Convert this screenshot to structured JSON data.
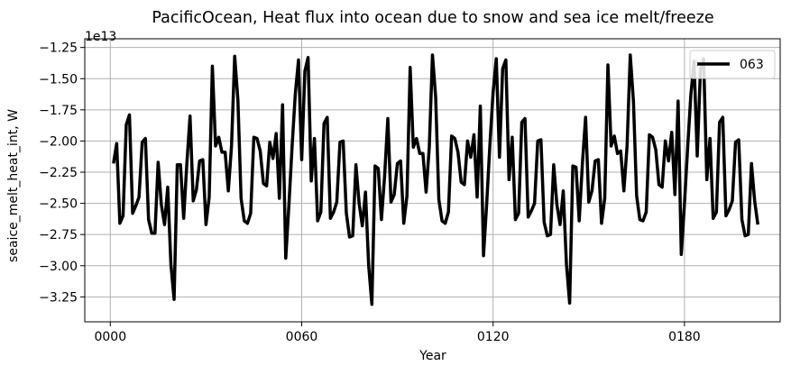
{
  "chart_data": {
    "type": "line",
    "title": "PacificOcean, Heat flux into ocean due to snow and sea ice melt/freeze",
    "xlabel": "Year",
    "ylabel": "seaice_melt_heat_int, W",
    "offset_text": "1e13",
    "xlim": [
      -8,
      210
    ],
    "ylim": [
      -3.45,
      -1.18
    ],
    "x_ticks": [
      0,
      60,
      120,
      180
    ],
    "x_tick_labels": [
      "0000",
      "0060",
      "0120",
      "0180"
    ],
    "y_ticks": [
      -3.25,
      -3.0,
      -2.75,
      -2.5,
      -2.25,
      -2.0,
      -1.75,
      -1.5,
      -1.25
    ],
    "y_tick_labels": [
      "−3.25",
      "−3.00",
      "−2.75",
      "−2.50",
      "−2.25",
      "−2.00",
      "−1.75",
      "−1.50",
      "−1.25"
    ],
    "grid": true,
    "legend_position": "upper right",
    "series": [
      {
        "name": "063",
        "color": "#000000",
        "x_start": 1,
        "x_step": 1,
        "values": [
          -2.18,
          -2.02,
          -2.66,
          -2.6,
          -1.87,
          -1.79,
          -2.58,
          -2.52,
          -2.45,
          -2.01,
          -1.98,
          -2.63,
          -2.74,
          -2.74,
          -2.17,
          -2.51,
          -2.67,
          -2.37,
          -2.99,
          -3.27,
          -2.19,
          -2.19,
          -2.62,
          -2.18,
          -1.8,
          -2.48,
          -2.39,
          -2.16,
          -2.15,
          -2.67,
          -2.45,
          -1.4,
          -2.04,
          -1.97,
          -2.09,
          -2.09,
          -2.4,
          -2.04,
          -1.32,
          -1.67,
          -2.46,
          -2.64,
          -2.66,
          -2.58,
          -1.97,
          -1.98,
          -2.08,
          -2.34,
          -2.36,
          -2.01,
          -2.14,
          -1.94,
          -2.46,
          -1.71,
          -2.94,
          -2.51,
          -2.04,
          -1.62,
          -1.35,
          -2.15,
          -1.44,
          -1.33,
          -2.32,
          -1.98,
          -2.64,
          -2.57,
          -1.86,
          -1.81,
          -2.62,
          -2.57,
          -2.49,
          -2.01,
          -2.0,
          -2.58,
          -2.77,
          -2.76,
          -2.19,
          -2.5,
          -2.68,
          -2.41,
          -3.0,
          -3.31,
          -2.2,
          -2.22,
          -2.63,
          -2.28,
          -1.82,
          -2.49,
          -2.43,
          -2.18,
          -2.16,
          -2.66,
          -2.44,
          -1.41,
          -2.05,
          -1.98,
          -2.1,
          -2.1,
          -2.41,
          -2.05,
          -1.31,
          -1.65,
          -2.47,
          -2.64,
          -2.66,
          -2.57,
          -1.96,
          -1.98,
          -2.09,
          -2.33,
          -2.35,
          -2.0,
          -2.13,
          -1.95,
          -2.45,
          -1.72,
          -2.92,
          -2.5,
          -2.03,
          -1.61,
          -1.34,
          -2.13,
          -1.42,
          -1.35,
          -2.31,
          -1.97,
          -2.63,
          -2.58,
          -1.85,
          -1.82,
          -2.61,
          -2.56,
          -2.5,
          -2.0,
          -1.99,
          -2.65,
          -2.76,
          -2.75,
          -2.19,
          -2.51,
          -2.67,
          -2.4,
          -2.99,
          -3.3,
          -2.2,
          -2.21,
          -2.64,
          -2.18,
          -1.81,
          -2.49,
          -2.4,
          -2.16,
          -2.15,
          -2.66,
          -2.46,
          -1.39,
          -2.04,
          -1.96,
          -2.1,
          -2.08,
          -2.4,
          -2.04,
          -1.31,
          -1.68,
          -2.44,
          -2.63,
          -2.64,
          -2.57,
          -1.95,
          -1.97,
          -2.07,
          -2.35,
          -2.37,
          -2.0,
          -2.16,
          -1.93,
          -2.43,
          -1.68,
          -2.91,
          -2.5,
          -2.05,
          -1.63,
          -1.36,
          -2.12,
          -1.43,
          -1.34,
          -2.31,
          -1.98,
          -2.62,
          -2.57,
          -1.85,
          -1.81,
          -2.6,
          -2.55,
          -2.48,
          -2.01,
          -1.99,
          -2.63,
          -2.76,
          -2.75,
          -2.18,
          -2.48,
          -2.67
        ]
      }
    ]
  }
}
